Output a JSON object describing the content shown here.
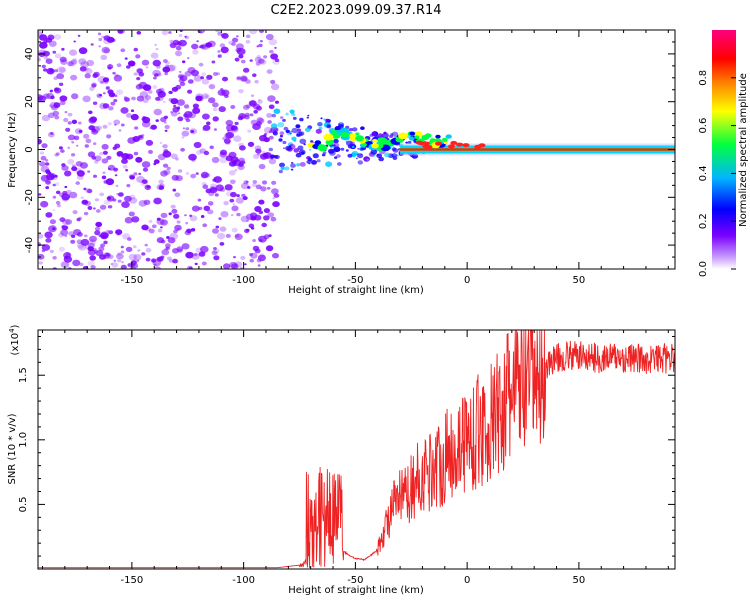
{
  "title": "C2E2.2023.099.09.37.R14",
  "chart_data": [
    {
      "type": "heatmap",
      "name": "spectrogram",
      "xlabel": "Height of straight line (km)",
      "ylabel": "Frequency (Hz)",
      "xlim": [
        -192,
        93
      ],
      "ylim": [
        -50,
        50
      ],
      "x_ticks": [
        -150,
        -100,
        -50,
        0,
        50
      ],
      "y_ticks": [
        -40,
        -20,
        0,
        20,
        40
      ],
      "colorbar": {
        "label": "Normalized spectral amplitude",
        "range": [
          0.0,
          1.0
        ],
        "ticks": [
          "0.0",
          "0.2",
          "0.4",
          "0.6",
          "0.8"
        ],
        "colormap": [
          "#ffffff",
          "#7a00ff",
          "#0000ff",
          "#00b4ff",
          "#00ff40",
          "#ffff00",
          "#ff8000",
          "#ff0000",
          "#ff0080"
        ]
      },
      "features": {
        "noise_region_x": [
          -192,
          -85
        ],
        "signal_onset_x": -85,
        "carrier_frequency_hz": 0,
        "noise_color": "#7a00ff"
      }
    },
    {
      "type": "line",
      "name": "snr",
      "xlabel": "Height of straight line (km)",
      "ylabel": "SNR (10 * v/v)",
      "y_scale_label": "(x10",
      "y_scale_exp": "4",
      "xlim": [
        -192,
        93
      ],
      "ylim": [
        0,
        1.85
      ],
      "x_ticks": [
        -150,
        -100,
        -50,
        0,
        50
      ],
      "y_ticks": [
        0.5,
        1.0,
        1.5
      ],
      "y_tick_labels": [
        "0.5",
        "1.0",
        "1.5"
      ],
      "line_color": "#ee2222",
      "series": [
        {
          "x": [
            -192,
            -150,
            -100,
            -85,
            -80,
            -75,
            -72,
            -70,
            -68,
            -66,
            -64,
            -62,
            -60,
            -58,
            -56,
            -54,
            -52,
            -50,
            -48,
            -46,
            -44,
            -42,
            -40,
            -38,
            -36,
            -34,
            -32,
            -30,
            -28,
            -26,
            -24,
            -22,
            -20,
            -18,
            -16,
            -14,
            -12,
            -10,
            -8,
            -6,
            -4,
            -2,
            0,
            2,
            4,
            6,
            8,
            10,
            12,
            14,
            16,
            18,
            20,
            22,
            24,
            26,
            28,
            30,
            32,
            34,
            36,
            38,
            40,
            45,
            50,
            55,
            60,
            65,
            70,
            75,
            80,
            85,
            93
          ],
          "y": [
            0.01,
            0.01,
            0.01,
            0.01,
            0.02,
            0.03,
            0.05,
            0.1,
            0.2,
            0.35,
            0.55,
            0.6,
            0.58,
            0.4,
            0.15,
            0.12,
            0.1,
            0.08,
            0.08,
            0.07,
            0.1,
            0.12,
            0.15,
            0.25,
            0.35,
            0.45,
            0.5,
            0.55,
            0.55,
            0.6,
            0.65,
            0.7,
            0.7,
            0.75,
            0.78,
            0.8,
            0.82,
            0.85,
            0.9,
            0.92,
            0.95,
            1.0,
            1.0,
            1.02,
            1.05,
            1.08,
            1.1,
            1.1,
            1.15,
            1.2,
            1.25,
            1.3,
            1.35,
            1.4,
            1.42,
            1.45,
            1.48,
            1.5,
            1.52,
            1.55,
            1.58,
            1.62,
            1.63,
            1.65,
            1.65,
            1.64,
            1.63,
            1.64,
            1.63,
            1.63,
            1.62,
            1.63,
            1.63
          ]
        }
      ]
    }
  ]
}
